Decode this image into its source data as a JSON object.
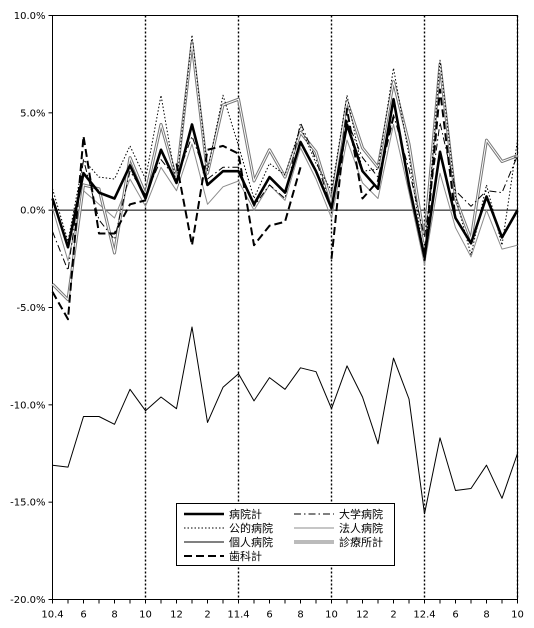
{
  "chart_data": {
    "type": "line",
    "title": "",
    "xlabel": "",
    "ylabel": "",
    "ylim": [
      -20,
      10
    ],
    "y_ticks": [
      "10.0%",
      "5.0%",
      "0.0%",
      "-5.0%",
      "-10.0%",
      "-15.0%",
      "-20.0%"
    ],
    "y_tick_values": [
      10,
      5,
      0,
      -5,
      -10,
      -15,
      -20
    ],
    "x_count": 31,
    "x_tick_labels": [
      {
        "i": 0,
        "label": "10.4"
      },
      {
        "i": 2,
        "label": "6"
      },
      {
        "i": 4,
        "label": "8"
      },
      {
        "i": 6,
        "label": "10"
      },
      {
        "i": 8,
        "label": "12"
      },
      {
        "i": 10,
        "label": "2"
      },
      {
        "i": 12,
        "label": "11.4"
      },
      {
        "i": 14,
        "label": "6"
      },
      {
        "i": 16,
        "label": "8"
      },
      {
        "i": 18,
        "label": "10"
      },
      {
        "i": 20,
        "label": "12"
      },
      {
        "i": 22,
        "label": "2"
      },
      {
        "i": 24,
        "label": "12.4"
      },
      {
        "i": 26,
        "label": "6"
      },
      {
        "i": 28,
        "label": "8"
      },
      {
        "i": 30,
        "label": "10"
      }
    ],
    "vertical_dotted_at": [
      6,
      12,
      18,
      24,
      30
    ],
    "series": [
      {
        "name": "病院計",
        "style": "thick",
        "values": [
          0.6,
          -1.9,
          1.9,
          0.9,
          0.6,
          2.3,
          0.6,
          3.1,
          1.4,
          4.4,
          1.3,
          2.0,
          2.0,
          0.3,
          1.7,
          0.9,
          3.5,
          2.0,
          0.1,
          4.4,
          2.0,
          1.1,
          5.7,
          1.3,
          -2.4,
          3.0,
          -0.4,
          -1.7,
          0.7,
          -1.4,
          0.0
        ]
      },
      {
        "name": "大学病院",
        "style": "dashdot",
        "values": [
          -1.1,
          -3.1,
          2.6,
          -0.5,
          -1.5,
          2.0,
          0.8,
          2.6,
          1.6,
          3.8,
          1.6,
          2.2,
          2.2,
          0.2,
          1.3,
          0.6,
          4.5,
          2.6,
          0.1,
          4.6,
          2.7,
          1.7,
          4.9,
          2.1,
          -1.4,
          4.5,
          1.0,
          0.2,
          1.0,
          0.9,
          2.8
        ]
      },
      {
        "name": "公的病院",
        "style": "dotted",
        "values": [
          1.1,
          -1.6,
          2.6,
          1.7,
          1.6,
          3.3,
          1.6,
          5.9,
          1.3,
          9.0,
          2.0,
          5.9,
          3.3,
          0.6,
          2.4,
          1.8,
          4.3,
          2.4,
          1.0,
          5.9,
          2.0,
          2.1,
          7.3,
          2.8,
          -2.6,
          7.7,
          0.7,
          -2.3,
          1.3,
          -1.8,
          3.6
        ]
      },
      {
        "name": "法人病院",
        "style": "thin-gray",
        "values": [
          0.1,
          -2.6,
          1.0,
          0.3,
          -0.4,
          1.6,
          0.2,
          2.2,
          1.0,
          3.4,
          0.3,
          1.2,
          1.5,
          0.0,
          1.3,
          0.5,
          3.2,
          1.6,
          -0.4,
          3.6,
          1.4,
          0.6,
          4.4,
          0.9,
          -2.8,
          1.9,
          -0.9,
          -2.4,
          0.0,
          -2.0,
          -1.8
        ]
      },
      {
        "name": "個人病院",
        "style": "thin",
        "values": [
          -13.1,
          -13.2,
          -10.6,
          -10.6,
          -11.0,
          -9.2,
          -10.3,
          -9.6,
          -10.2,
          -6.0,
          -10.9,
          -9.1,
          -8.4,
          -9.8,
          -8.6,
          -9.2,
          -8.1,
          -8.3,
          -10.2,
          -8.0,
          -9.6,
          -12.0,
          -7.6,
          -9.7,
          -15.6,
          -11.7,
          -14.4,
          -14.3,
          -13.1,
          -14.8,
          -12.5
        ]
      },
      {
        "name": "診療所計",
        "style": "double",
        "values": [
          -3.8,
          -4.6,
          1.3,
          1.1,
          -2.2,
          2.7,
          0.8,
          4.4,
          1.6,
          8.6,
          1.9,
          5.4,
          5.7,
          1.5,
          3.1,
          1.7,
          4.0,
          3.0,
          0.4,
          5.6,
          3.2,
          2.2,
          6.6,
          3.4,
          -1.6,
          7.5,
          0.6,
          -1.5,
          3.6,
          2.5,
          2.8
        ]
      },
      {
        "name": "歯科計",
        "style": "dashed",
        "values": [
          -4.2,
          -5.6,
          3.8,
          -1.2,
          -1.2,
          0.3,
          0.5,
          null,
          2.4,
          -1.8,
          3.1,
          3.3,
          2.9,
          -1.8,
          -0.8,
          -0.6,
          2.2,
          null,
          -2.5,
          5.2,
          0.6,
          1.5,
          4.8,
          null,
          -2.6,
          6.2,
          -0.4,
          null,
          null,
          null,
          null
        ]
      }
    ]
  }
}
